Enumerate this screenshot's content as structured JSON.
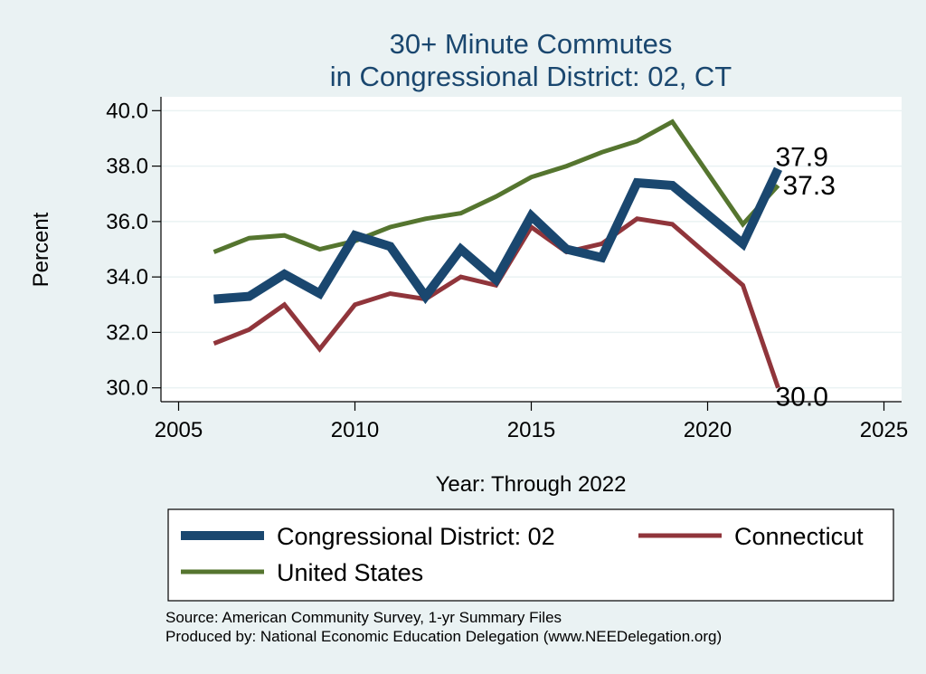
{
  "chart_data": {
    "type": "line",
    "title_lines": [
      "30+ Minute Commutes",
      "in Congressional District:  02, CT"
    ],
    "xlabel": "Year: Through 2022",
    "ylabel": "Percent",
    "xlim": [
      2004.5,
      2025.5
    ],
    "ylim": [
      29.5,
      40.5
    ],
    "xticks": [
      2005,
      2010,
      2015,
      2020,
      2025
    ],
    "xtick_labels": [
      "2005",
      "2010",
      "2015",
      "2020",
      "2025"
    ],
    "yticks": [
      30,
      32,
      34,
      36,
      38,
      40
    ],
    "ytick_labels": [
      "30.0",
      "32.0",
      "34.0",
      "36.0",
      "38.0",
      "40.0"
    ],
    "grid": true,
    "x": [
      2006,
      2007,
      2008,
      2009,
      2010,
      2011,
      2012,
      2013,
      2014,
      2015,
      2016,
      2017,
      2018,
      2019,
      2021,
      2022
    ],
    "series": [
      {
        "name": "Congressional District:  02",
        "color": "#1a476f",
        "values": [
          33.2,
          33.3,
          34.1,
          33.4,
          35.5,
          35.1,
          33.3,
          35.0,
          33.9,
          36.2,
          35.0,
          34.7,
          37.4,
          37.3,
          35.2,
          37.9
        ],
        "end_label": "37.9"
      },
      {
        "name": "Connecticut",
        "color": "#90353b",
        "values": [
          31.6,
          32.1,
          33.0,
          31.4,
          33.0,
          33.4,
          33.2,
          34.0,
          33.7,
          35.8,
          34.9,
          35.2,
          36.1,
          35.9,
          33.7,
          30.0
        ],
        "end_label": "30.0"
      },
      {
        "name": "United States",
        "color": "#55752f",
        "values": [
          34.9,
          35.4,
          35.5,
          35.0,
          35.3,
          35.8,
          36.1,
          36.3,
          36.9,
          37.6,
          38.0,
          38.5,
          38.9,
          39.6,
          35.9,
          37.3
        ],
        "end_label": "37.3"
      }
    ],
    "legend": {
      "placement": "bottom",
      "entries": [
        "Congressional District:  02",
        "Connecticut",
        "United States"
      ]
    }
  },
  "source_lines": [
    "Source: American Community Survey, 1-yr Summary Files",
    "Produced by: National Economic Education Delegation (www.NEEDelegation.org)"
  ]
}
